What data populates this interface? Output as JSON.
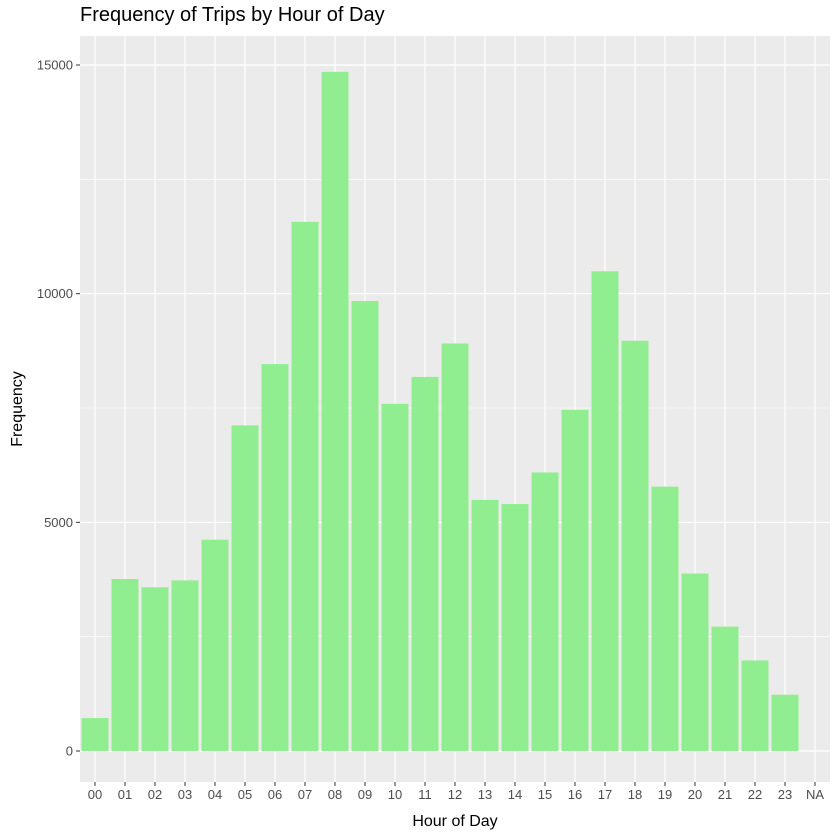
{
  "chart_data": {
    "type": "bar",
    "title": "Frequency of Trips by Hour of Day",
    "xlabel": "Hour of Day",
    "ylabel": "Frequency",
    "categories": [
      "00",
      "01",
      "02",
      "03",
      "04",
      "05",
      "06",
      "07",
      "08",
      "09",
      "10",
      "11",
      "12",
      "13",
      "14",
      "15",
      "16",
      "17",
      "18",
      "19",
      "20",
      "21",
      "22",
      "23",
      "NA"
    ],
    "values": [
      720,
      3760,
      3580,
      3730,
      4620,
      7120,
      8460,
      11570,
      14850,
      9840,
      7590,
      8180,
      8910,
      5490,
      5400,
      6090,
      7460,
      10490,
      8970,
      5780,
      3880,
      2720,
      1980,
      1230,
      0
    ],
    "ylim": [
      0,
      15600
    ],
    "yticks": [
      0,
      5000,
      10000,
      15000
    ],
    "ytick_labels": [
      "0",
      "5000",
      "10000",
      "15000"
    ],
    "bar_color": "#90EE90",
    "panel_background": "#EBEBEB",
    "grid": true
  }
}
